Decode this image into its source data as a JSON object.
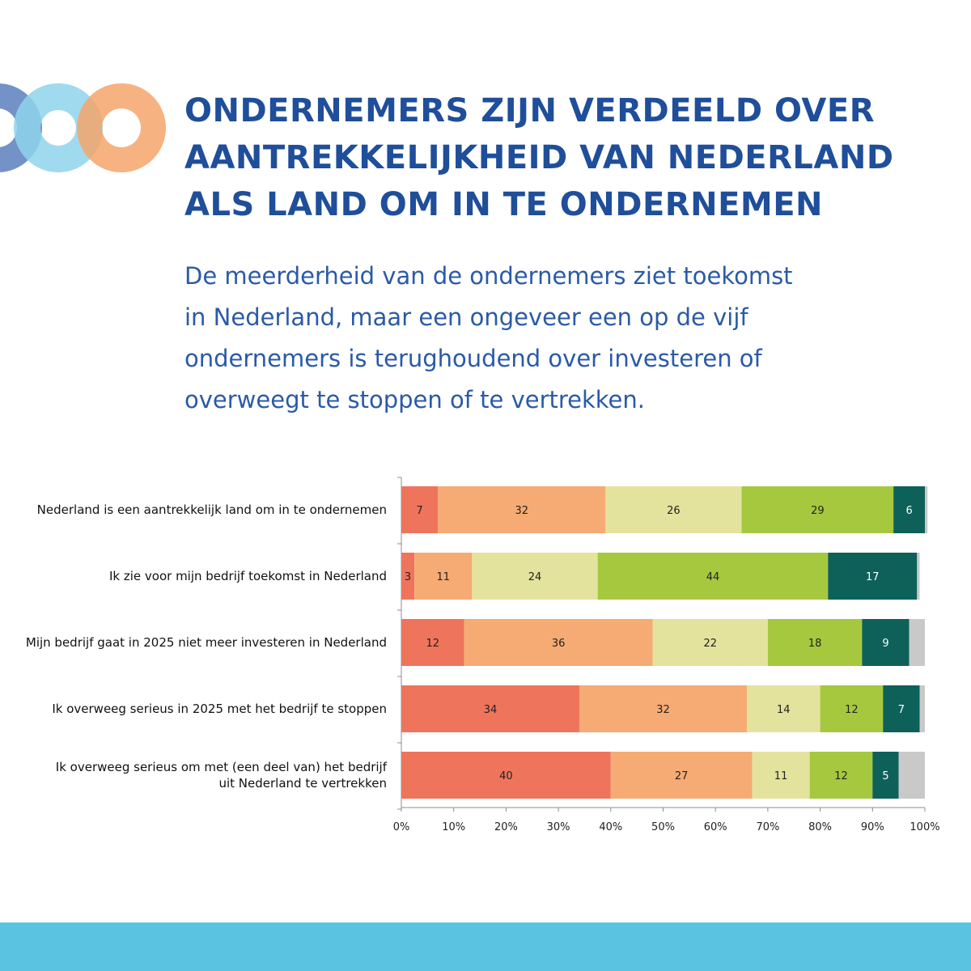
{
  "header": {
    "title_lines": [
      "ONDERNEMERS ZIJN VERDEELD OVER",
      "AANTREKKELIJKHEID VAN NEDERLAND",
      "ALS LAND OM IN TE ONDERNEMEN"
    ],
    "subtitle_lines": [
      "De meerderheid van de ondernemers ziet toekomst",
      "in Nederland, maar een ongeveer een op de vijf",
      "ondernemers is terughoudend over investeren of",
      "overweegt te stoppen of te vertrekken."
    ]
  },
  "logo": {
    "icon": "three-overlapping-rings-logo",
    "colors": [
      "#5a7fbd",
      "#8fd3ec",
      "#f4a56b"
    ]
  },
  "colors": {
    "segments": [
      "#ef745c",
      "#f5ab73",
      "#e4e39d",
      "#a6c83f",
      "#0d6158",
      "#c9c9c9"
    ],
    "title": "#1f4e9a",
    "bottom_band": "#5bc3e2"
  },
  "chart_data": {
    "type": "bar",
    "orientation": "horizontal",
    "stacked": true,
    "categories": [
      [
        "Nederland is een aantrekkelijk land om in te ondernemen"
      ],
      [
        "Ik zie voor mijn bedrijf toekomst in Nederland"
      ],
      [
        "Mijn bedrijf gaat in 2025 niet meer investeren in Nederland"
      ],
      [
        "Ik overweeg serieus in 2025 met het bedrijf te stoppen"
      ],
      [
        "Ik overweeg serieus om met (een deel van) het bedrijf",
        "uit Nederland te vertrekken"
      ]
    ],
    "series": [
      {
        "values": [
          7,
          2.5,
          12,
          34,
          40
        ],
        "labels": [
          "7",
          "3",
          "12",
          "34",
          "40"
        ]
      },
      {
        "values": [
          32,
          11,
          36,
          32,
          27
        ],
        "labels": [
          "32",
          "11",
          "36",
          "32",
          "27"
        ]
      },
      {
        "values": [
          26,
          24,
          22,
          14,
          11
        ],
        "labels": [
          "26",
          "24",
          "22",
          "14",
          "11"
        ]
      },
      {
        "values": [
          29,
          44,
          18,
          12,
          12
        ],
        "labels": [
          "29",
          "44",
          "18",
          "12",
          "12"
        ]
      },
      {
        "values": [
          6,
          17,
          9,
          7,
          5
        ],
        "labels": [
          "6",
          "17",
          "9",
          "7",
          "5"
        ]
      },
      {
        "values": [
          0.5,
          0.5,
          3,
          1,
          5
        ],
        "labels": [
          "",
          "",
          "",
          "",
          ""
        ]
      }
    ],
    "x_ticks": [
      "0%",
      "10%",
      "20%",
      "30%",
      "40%",
      "50%",
      "60%",
      "70%",
      "80%",
      "90%",
      "100%"
    ],
    "xlim": [
      0,
      100
    ],
    "grid": false,
    "legend": "none"
  }
}
